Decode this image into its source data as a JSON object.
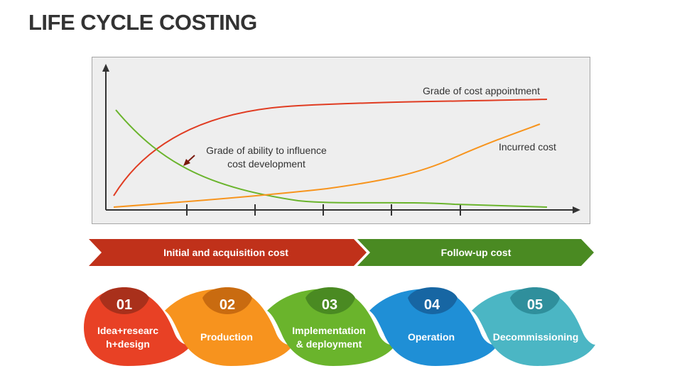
{
  "title": "LIFE CYCLE COSTING",
  "chart": {
    "label_cost_appointment": "Grade of cost appointment",
    "label_influence_line1": "Grade of ability to influence",
    "label_influence_line2": "cost development",
    "label_incurred": "Incurred cost",
    "colors": {
      "appointment": "#e03c22",
      "influence": "#6ab42c",
      "incurred": "#f7941d",
      "axis": "#333333"
    }
  },
  "phases": [
    {
      "label": "Initial and acquisition cost",
      "color": "#c0311a"
    },
    {
      "label": "Follow-up cost",
      "color": "#4a8a22"
    }
  ],
  "stages": [
    {
      "number": "01",
      "line1": "Idea+researc",
      "line2": "h+design",
      "color": "#e84125",
      "dark": "#a9301b"
    },
    {
      "number": "02",
      "line1": "Production",
      "line2": "",
      "color": "#f7931e",
      "dark": "#c96b10"
    },
    {
      "number": "03",
      "line1": "Implementation",
      "line2": "& deployment",
      "color": "#6ab42c",
      "dark": "#4a8a22"
    },
    {
      "number": "04",
      "line1": "Operation",
      "line2": "",
      "color": "#1f8fd6",
      "dark": "#1766a3"
    },
    {
      "number": "05",
      "line1": "Decommissioning",
      "line2": "",
      "color": "#4bb6c4",
      "dark": "#2f8f9c"
    }
  ]
}
